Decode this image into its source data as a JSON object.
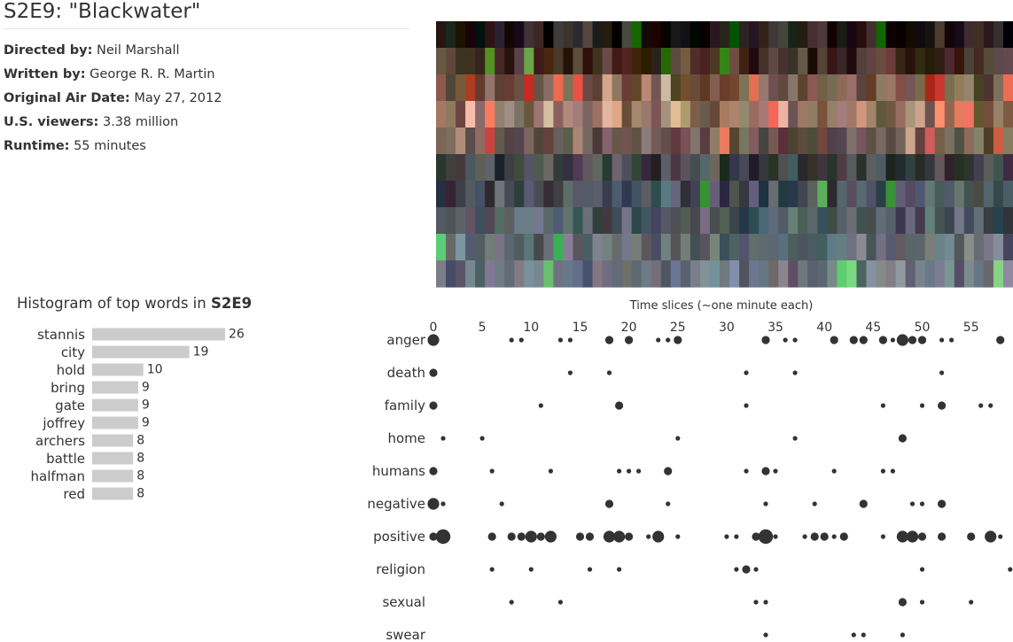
{
  "page_title": "S2E9: \"Blackwater\"",
  "metadata": [
    {
      "label": "Directed by:",
      "value": "Neil Marshall"
    },
    {
      "label": "Written by:",
      "value": "George R. R. Martin"
    },
    {
      "label": "Original Air Date:",
      "value": "May 27, 2012"
    },
    {
      "label": "U.S. viewers:",
      "value": "3.38 million"
    },
    {
      "label": "Runtime:",
      "value": "55 minutes"
    }
  ],
  "histogram_title_prefix": "Histogram of top words in ",
  "histogram_title_episode": "S2E9",
  "timeline_axis_title": "Time slices (~one minute each)",
  "colors": {
    "bar": "#cccccc",
    "dot": "#333333",
    "text": "#333333"
  },
  "chart_data": [
    {
      "type": "bar",
      "orientation": "horizontal",
      "categories": [
        "stannis",
        "city",
        "hold",
        "bring",
        "gate",
        "joffrey",
        "archers",
        "battle",
        "halfman",
        "red"
      ],
      "values": [
        26,
        19,
        10,
        9,
        9,
        9,
        8,
        8,
        8,
        8
      ]
    },
    {
      "type": "scatter",
      "xlim": [
        0,
        59
      ],
      "xticks": [
        0,
        5,
        10,
        15,
        20,
        25,
        30,
        35,
        40,
        45,
        50,
        55
      ],
      "categories": [
        "anger",
        "death",
        "family",
        "home",
        "humans",
        "negative",
        "positive",
        "religion",
        "sexual",
        "swear"
      ],
      "size_encoding": "dot size = number of matching words in the time slice",
      "points": [
        {
          "category": "anger",
          "x": [
            0,
            8,
            9,
            13,
            14,
            18,
            20,
            23,
            24,
            25,
            34,
            36,
            37,
            41,
            43,
            44,
            46,
            47,
            48,
            49,
            50,
            52,
            53,
            58
          ],
          "size": [
            3,
            1,
            1,
            1,
            1,
            2,
            2,
            1,
            1,
            2,
            2,
            1,
            1,
            2,
            2,
            2,
            2,
            1,
            3,
            2,
            2,
            1,
            1,
            2
          ]
        },
        {
          "category": "death",
          "x": [
            0,
            14,
            18,
            32,
            37,
            52
          ],
          "size": [
            2,
            1,
            1,
            1,
            1,
            1
          ]
        },
        {
          "category": "family",
          "x": [
            0,
            11,
            19,
            32,
            46,
            50,
            52,
            56,
            57
          ],
          "size": [
            2,
            1,
            2,
            1,
            1,
            1,
            2,
            1,
            1
          ]
        },
        {
          "category": "home",
          "x": [
            1,
            5,
            25,
            37,
            48
          ],
          "size": [
            1,
            1,
            1,
            1,
            2
          ]
        },
        {
          "category": "humans",
          "x": [
            0,
            6,
            12,
            19,
            20,
            21,
            24,
            32,
            34,
            35,
            41,
            46,
            47
          ],
          "size": [
            2,
            1,
            1,
            1,
            1,
            1,
            2,
            1,
            2,
            1,
            1,
            1,
            1
          ]
        },
        {
          "category": "negative",
          "x": [
            0,
            1,
            7,
            18,
            24,
            34,
            39,
            44,
            49,
            50,
            52
          ],
          "size": [
            3,
            1,
            1,
            2,
            1,
            1,
            1,
            2,
            1,
            1,
            2
          ]
        },
        {
          "category": "positive",
          "x": [
            0,
            1,
            6,
            8,
            9,
            10,
            11,
            12,
            15,
            16,
            18,
            19,
            20,
            22,
            23,
            25,
            30,
            31,
            33,
            34,
            35,
            38,
            39,
            40,
            41,
            42,
            46,
            48,
            49,
            50,
            52,
            55,
            57,
            58
          ],
          "size": [
            2,
            4,
            2,
            2,
            2,
            3,
            2,
            3,
            2,
            2,
            3,
            3,
            2,
            1,
            3,
            1,
            1,
            1,
            2,
            4,
            1,
            1,
            2,
            2,
            1,
            2,
            1,
            3,
            3,
            2,
            2,
            2,
            3,
            1
          ]
        },
        {
          "category": "religion",
          "x": [
            6,
            10,
            16,
            19,
            31,
            32,
            33,
            50,
            59
          ],
          "size": [
            1,
            1,
            1,
            1,
            1,
            2,
            1,
            1,
            1
          ]
        },
        {
          "category": "sexual",
          "x": [
            8,
            13,
            33,
            34,
            48,
            50,
            55
          ],
          "size": [
            1,
            1,
            1,
            1,
            2,
            1,
            1
          ]
        },
        {
          "category": "swear",
          "x": [
            34,
            43,
            44,
            48
          ],
          "size": [
            1,
            1,
            1,
            1
          ]
        }
      ]
    }
  ]
}
